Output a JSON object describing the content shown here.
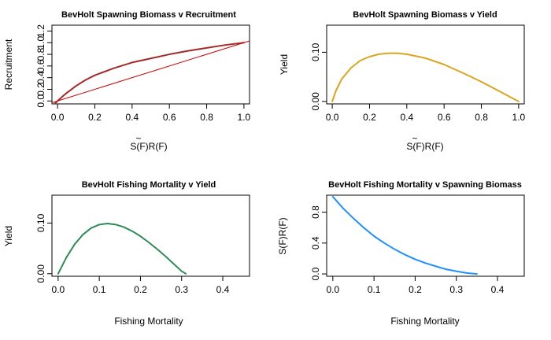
{
  "chart_data": [
    {
      "type": "line",
      "title": "BevHolt Spawning Biomass v Recruitment",
      "xlabel_parts": [
        "S(",
        "F",
        ")R(F)"
      ],
      "xlabel_tilde": "~",
      "ylabel": "Recruitment",
      "xlim": [
        -0.03,
        1.03
      ],
      "ylim": [
        -0.05,
        1.3
      ],
      "xticks": [
        0.0,
        0.2,
        0.4,
        0.6,
        0.8,
        1.0
      ],
      "xtick_labels": [
        "0.0",
        "0.2",
        "0.4",
        "0.6",
        "0.8",
        "1.0"
      ],
      "yticks": [
        0.0,
        0.2,
        0.4,
        0.6,
        0.8,
        1.0,
        1.2
      ],
      "ytick_labels": [
        "0.0",
        "0.2",
        "0.4",
        "0.6",
        "0.8",
        "1.0",
        "1.2"
      ],
      "colors": {
        "curve": "#a52a2a",
        "line": "#cc0000"
      },
      "series": [
        {
          "x": [
            -0.02,
            0.0,
            0.02,
            0.05,
            0.1,
            0.15,
            0.2,
            0.3,
            0.4,
            0.5,
            0.6,
            0.7,
            0.8,
            0.9,
            1.0
          ],
          "y": [
            -0.06,
            0.0,
            0.06,
            0.14,
            0.26,
            0.36,
            0.44,
            0.56,
            0.66,
            0.73,
            0.8,
            0.86,
            0.91,
            0.96,
            1.0
          ]
        },
        {
          "x": [
            -0.03,
            1.03
          ],
          "y": [
            -0.03,
            1.03
          ]
        }
      ]
    },
    {
      "type": "line",
      "title": "BevHolt Spawning Biomass v Yield",
      "xlabel_parts": [
        "S(",
        "F",
        ")R(F)"
      ],
      "xlabel_tilde": "~",
      "ylabel": "Yield",
      "xlim": [
        -0.03,
        1.03
      ],
      "ylim": [
        -0.005,
        0.155
      ],
      "xticks": [
        0.0,
        0.2,
        0.4,
        0.6,
        0.8,
        1.0
      ],
      "xtick_labels": [
        "0.0",
        "0.2",
        "0.4",
        "0.6",
        "0.8",
        "1.0"
      ],
      "yticks": [
        0.0,
        0.1
      ],
      "ytick_labels": [
        "0.00",
        "0.10"
      ],
      "colors": {
        "curve": "#daa520"
      },
      "series": [
        {
          "x": [
            0.0,
            0.02,
            0.05,
            0.1,
            0.15,
            0.2,
            0.25,
            0.3,
            0.35,
            0.4,
            0.5,
            0.6,
            0.7,
            0.8,
            0.9,
            1.0
          ],
          "y": [
            0.0,
            0.022,
            0.045,
            0.068,
            0.083,
            0.091,
            0.096,
            0.098,
            0.098,
            0.096,
            0.088,
            0.075,
            0.058,
            0.04,
            0.02,
            0.0
          ]
        }
      ]
    },
    {
      "type": "line",
      "title": "BevHolt Fishing Mortality v Yield",
      "xlabel": "Fishing Mortality",
      "ylabel": "Yield",
      "xlim": [
        -0.015,
        0.465
      ],
      "ylim": [
        -0.005,
        0.155
      ],
      "xticks": [
        0.0,
        0.1,
        0.2,
        0.3,
        0.4
      ],
      "xtick_labels": [
        "0.0",
        "0.1",
        "0.2",
        "0.3",
        "0.4"
      ],
      "yticks": [
        0.0,
        0.1
      ],
      "ytick_labels": [
        "0.00",
        "0.10"
      ],
      "colors": {
        "curve": "#2e8b57"
      },
      "series": [
        {
          "x": [
            0.0,
            0.02,
            0.04,
            0.06,
            0.08,
            0.1,
            0.12,
            0.14,
            0.16,
            0.18,
            0.2,
            0.22,
            0.24,
            0.26,
            0.28,
            0.3,
            0.31
          ],
          "y": [
            0.0,
            0.032,
            0.058,
            0.077,
            0.09,
            0.097,
            0.099,
            0.097,
            0.092,
            0.084,
            0.074,
            0.062,
            0.049,
            0.035,
            0.02,
            0.005,
            0.0
          ]
        }
      ]
    },
    {
      "type": "line",
      "title": "BevHolt Fishing Mortality v Spawning Biomass",
      "xlabel": "Fishing Mortality",
      "ylabel": "S(F)R(F)",
      "xlim": [
        -0.015,
        0.465
      ],
      "ylim": [
        -0.03,
        1.02
      ],
      "xticks": [
        0.0,
        0.1,
        0.2,
        0.3,
        0.4
      ],
      "xtick_labels": [
        "0.0",
        "0.1",
        "0.2",
        "0.3",
        "0.4"
      ],
      "yticks": [
        0.0,
        0.4,
        0.8
      ],
      "ytick_labels": [
        "0.0",
        "0.4",
        "0.8"
      ],
      "colors": {
        "curve": "#1e90ff"
      },
      "series": [
        {
          "x": [
            0.0,
            0.025,
            0.05,
            0.075,
            0.1,
            0.125,
            0.15,
            0.175,
            0.2,
            0.225,
            0.25,
            0.275,
            0.3,
            0.325,
            0.35
          ],
          "y": [
            1.0,
            0.85,
            0.72,
            0.6,
            0.49,
            0.4,
            0.32,
            0.25,
            0.19,
            0.14,
            0.1,
            0.06,
            0.035,
            0.012,
            0.0
          ]
        }
      ]
    }
  ]
}
